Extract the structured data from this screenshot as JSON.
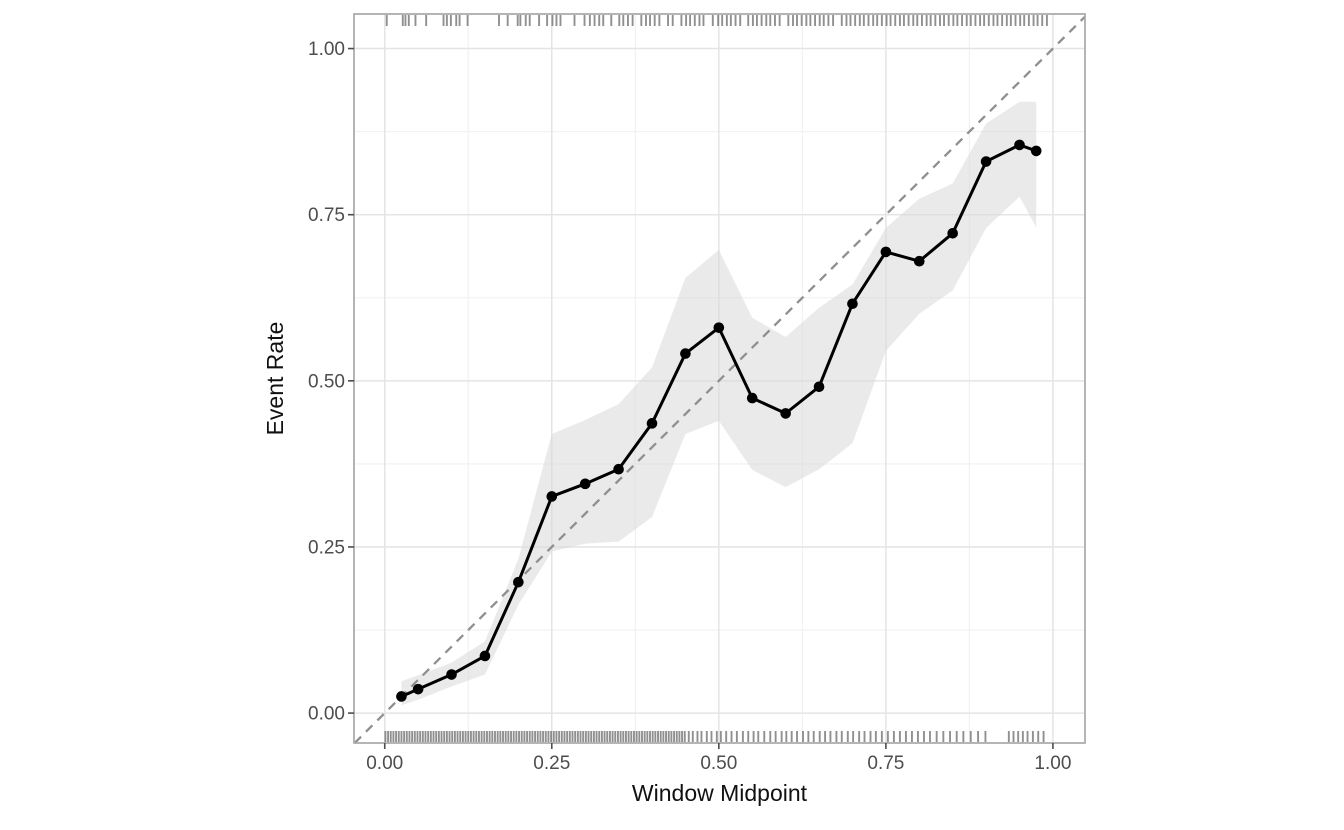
{
  "figure": {
    "background_color": "#ffffff",
    "panel_border_color": "#a8a8a8",
    "grid_major_color": "#e4e4e4",
    "grid_minor_color": "#f0f0f0",
    "line_color": "#000000",
    "point_color": "#000000",
    "diagonal_color": "#8f8f8f",
    "ribbon_color": "#d9d9d9",
    "rug_color": "#6b6b6b",
    "tick_text_color": "#4d4d4d"
  },
  "chart_data": {
    "type": "line",
    "title": "",
    "xlabel": "Window Midpoint",
    "ylabel": "Event Rate",
    "xlim": [
      -0.046,
      1.048
    ],
    "ylim": [
      -0.045,
      1.052
    ],
    "grid": true,
    "legend": "none",
    "x_ticks": [
      0,
      0.25,
      0.5,
      0.75,
      1.0
    ],
    "x_tick_labels": [
      "0.00",
      "0.25",
      "0.50",
      "0.75",
      "1.00"
    ],
    "y_ticks": [
      0,
      0.25,
      0.5,
      0.75,
      1.0
    ],
    "y_tick_labels": [
      "0.00",
      "0.25",
      "0.50",
      "0.75",
      "1.00"
    ],
    "minor_ticks": [
      0.125,
      0.375,
      0.625,
      0.875
    ],
    "series": [
      {
        "name": "observed-event-rate",
        "style": "solid-line-with-points",
        "x": [
          0.025,
          0.05,
          0.1,
          0.15,
          0.2,
          0.25,
          0.3,
          0.35,
          0.4,
          0.45,
          0.5,
          0.55,
          0.6,
          0.65,
          0.7,
          0.75,
          0.8,
          0.85,
          0.9,
          0.95,
          0.975
        ],
        "y": [
          0.025,
          0.036,
          0.058,
          0.086,
          0.197,
          0.326,
          0.345,
          0.367,
          0.436,
          0.541,
          0.58,
          0.474,
          0.451,
          0.491,
          0.616,
          0.694,
          0.68,
          0.722,
          0.83,
          0.855,
          0.846
        ]
      },
      {
        "name": "ideal-calibration-diagonal",
        "style": "dashed-line",
        "x": [
          -0.045,
          1.048
        ],
        "y": [
          -0.045,
          1.048
        ]
      }
    ],
    "ribbon": {
      "name": "confidence-band",
      "x": [
        0.025,
        0.05,
        0.1,
        0.15,
        0.2,
        0.25,
        0.3,
        0.35,
        0.4,
        0.45,
        0.5,
        0.55,
        0.6,
        0.65,
        0.7,
        0.75,
        0.8,
        0.85,
        0.9,
        0.95,
        0.975
      ],
      "upper": [
        0.048,
        0.057,
        0.076,
        0.108,
        0.232,
        0.42,
        0.441,
        0.465,
        0.52,
        0.655,
        0.697,
        0.595,
        0.566,
        0.61,
        0.645,
        0.73,
        0.774,
        0.797,
        0.887,
        0.92,
        0.92
      ],
      "lower": [
        0.012,
        0.02,
        0.04,
        0.058,
        0.163,
        0.243,
        0.255,
        0.258,
        0.295,
        0.42,
        0.44,
        0.366,
        0.34,
        0.367,
        0.406,
        0.545,
        0.601,
        0.636,
        0.73,
        0.777,
        0.731
      ]
    },
    "rug_top": [
      0.003,
      0.027,
      0.031,
      0.036,
      0.046,
      0.062,
      0.088,
      0.093,
      0.099,
      0.107,
      0.112,
      0.124,
      0.171,
      0.184,
      0.199,
      0.203,
      0.211,
      0.217,
      0.231,
      0.243,
      0.251,
      0.257,
      0.263,
      0.284,
      0.299,
      0.307,
      0.314,
      0.321,
      0.327,
      0.339,
      0.351,
      0.357,
      0.364,
      0.371,
      0.384,
      0.391,
      0.397,
      0.404,
      0.411,
      0.424,
      0.431,
      0.444,
      0.451,
      0.457,
      0.464,
      0.471,
      0.477,
      0.491,
      0.499,
      0.505,
      0.512,
      0.518,
      0.525,
      0.532,
      0.544,
      0.551,
      0.557,
      0.564,
      0.571,
      0.577,
      0.584,
      0.591,
      0.604,
      0.611,
      0.617,
      0.624,
      0.631,
      0.637,
      0.644,
      0.651,
      0.657,
      0.664,
      0.671,
      0.684,
      0.691,
      0.697,
      0.704,
      0.711,
      0.717,
      0.724,
      0.731,
      0.737,
      0.744,
      0.751,
      0.757,
      0.764,
      0.771,
      0.777,
      0.784,
      0.791,
      0.797,
      0.804,
      0.811,
      0.817,
      0.824,
      0.831,
      0.837,
      0.844,
      0.851,
      0.857,
      0.864,
      0.871,
      0.877,
      0.884,
      0.891,
      0.897,
      0.904,
      0.911,
      0.917,
      0.924,
      0.931,
      0.937,
      0.944,
      0.951,
      0.957,
      0.964,
      0.971,
      0.977,
      0.984,
      0.991
    ],
    "rug_bottom": [
      0.001,
      0.005,
      0.009,
      0.013,
      0.017,
      0.021,
      0.025,
      0.029,
      0.033,
      0.037,
      0.041,
      0.045,
      0.049,
      0.053,
      0.057,
      0.061,
      0.065,
      0.069,
      0.073,
      0.077,
      0.081,
      0.085,
      0.089,
      0.093,
      0.097,
      0.101,
      0.105,
      0.109,
      0.113,
      0.117,
      0.121,
      0.125,
      0.129,
      0.133,
      0.137,
      0.141,
      0.145,
      0.149,
      0.153,
      0.157,
      0.161,
      0.165,
      0.169,
      0.173,
      0.177,
      0.181,
      0.185,
      0.189,
      0.193,
      0.197,
      0.201,
      0.205,
      0.209,
      0.213,
      0.217,
      0.221,
      0.225,
      0.229,
      0.233,
      0.237,
      0.241,
      0.245,
      0.249,
      0.253,
      0.257,
      0.261,
      0.265,
      0.269,
      0.273,
      0.277,
      0.281,
      0.285,
      0.289,
      0.293,
      0.297,
      0.301,
      0.305,
      0.309,
      0.313,
      0.317,
      0.321,
      0.325,
      0.329,
      0.333,
      0.337,
      0.341,
      0.345,
      0.349,
      0.353,
      0.357,
      0.361,
      0.365,
      0.369,
      0.373,
      0.377,
      0.381,
      0.385,
      0.389,
      0.393,
      0.397,
      0.401,
      0.405,
      0.409,
      0.413,
      0.417,
      0.421,
      0.425,
      0.429,
      0.433,
      0.437,
      0.441,
      0.445,
      0.449,
      0.455,
      0.461,
      0.468,
      0.474,
      0.482,
      0.489,
      0.497,
      0.503,
      0.511,
      0.519,
      0.527,
      0.536,
      0.544,
      0.552,
      0.559,
      0.568,
      0.577,
      0.585,
      0.594,
      0.601,
      0.609,
      0.617,
      0.626,
      0.634,
      0.642,
      0.651,
      0.659,
      0.667,
      0.676,
      0.684,
      0.693,
      0.701,
      0.71,
      0.718,
      0.727,
      0.735,
      0.744,
      0.753,
      0.762,
      0.771,
      0.78,
      0.789,
      0.798,
      0.807,
      0.816,
      0.826,
      0.836,
      0.846,
      0.856,
      0.866,
      0.877,
      0.888,
      0.899,
      0.934,
      0.941,
      0.948,
      0.955,
      0.962,
      0.97,
      0.978,
      0.986
    ]
  }
}
